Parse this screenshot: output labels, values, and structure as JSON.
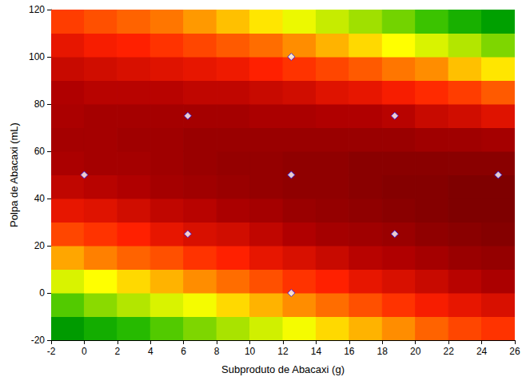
{
  "chart_data": {
    "type": "contour",
    "x_label": "Subproduto de Abacaxi (g)",
    "y_label": "Polpa de Abacaxi (mL)",
    "xlim": [
      -2,
      26
    ],
    "xticks": [
      -2,
      0,
      2,
      4,
      6,
      8,
      10,
      12,
      14,
      16,
      18,
      20,
      22,
      24,
      26
    ],
    "ylim": [
      -20,
      120
    ],
    "yticks": [
      -20,
      0,
      20,
      40,
      60,
      80,
      100,
      120
    ],
    "surface": {
      "x": [
        -1,
        1,
        3,
        5,
        7,
        9,
        11,
        13,
        15,
        17,
        19,
        21,
        23,
        25
      ],
      "y": [
        -15,
        -5,
        5,
        15,
        25,
        35,
        45,
        55,
        65,
        75,
        85,
        95,
        105,
        115
      ],
      "zlim": [
        0,
        100
      ],
      "z": [
        [
          29,
          34,
          38,
          43,
          47,
          51,
          55,
          59,
          63,
          66,
          69,
          73,
          76,
          78
        ],
        [
          43,
          48,
          52,
          56,
          59,
          63,
          66,
          69,
          72,
          75,
          78,
          81,
          83,
          85
        ],
        [
          56,
          60,
          63,
          66,
          69,
          72,
          75,
          78,
          80,
          83,
          85,
          87,
          89,
          91
        ],
        [
          67,
          70,
          73,
          75,
          78,
          80,
          83,
          85,
          87,
          89,
          90,
          92,
          94,
          95
        ],
        [
          76,
          78,
          80,
          83,
          85,
          86,
          88,
          90,
          92,
          93,
          94,
          96,
          97,
          98
        ],
        [
          83,
          84,
          86,
          88,
          89,
          91,
          92,
          94,
          95,
          96,
          97,
          98,
          99,
          99
        ],
        [
          88,
          89,
          90,
          92,
          93,
          94,
          95,
          96,
          96,
          97,
          98,
          98,
          99,
          99
        ],
        [
          91,
          92,
          92,
          93,
          94,
          95,
          95,
          96,
          96,
          97,
          97,
          97,
          97,
          97
        ],
        [
          92,
          92,
          93,
          93,
          94,
          94,
          94,
          94,
          94,
          94,
          94,
          93,
          93,
          92
        ],
        [
          91,
          92,
          92,
          92,
          92,
          92,
          91,
          91,
          90,
          90,
          89,
          87,
          86,
          84
        ],
        [
          90,
          89,
          89,
          89,
          88,
          88,
          87,
          86,
          84,
          83,
          81,
          79,
          77,
          74
        ],
        [
          87,
          86,
          85,
          84,
          83,
          82,
          80,
          78,
          76,
          74,
          71,
          69,
          65,
          62
        ],
        [
          83,
          81,
          80,
          78,
          76,
          74,
          72,
          69,
          66,
          63,
          60,
          56,
          52,
          47
        ],
        [
          77,
          75,
          73,
          71,
          68,
          65,
          62,
          58,
          54,
          50,
          46,
          41,
          35,
          30
        ]
      ]
    },
    "points": {
      "x": [
        0,
        6.25,
        6.25,
        12.5,
        12.5,
        12.5,
        18.75,
        18.75,
        25
      ],
      "y": [
        50,
        25,
        75,
        0,
        50,
        100,
        25,
        75,
        50
      ],
      "marker": "diamond",
      "color": "#ffffff"
    }
  }
}
